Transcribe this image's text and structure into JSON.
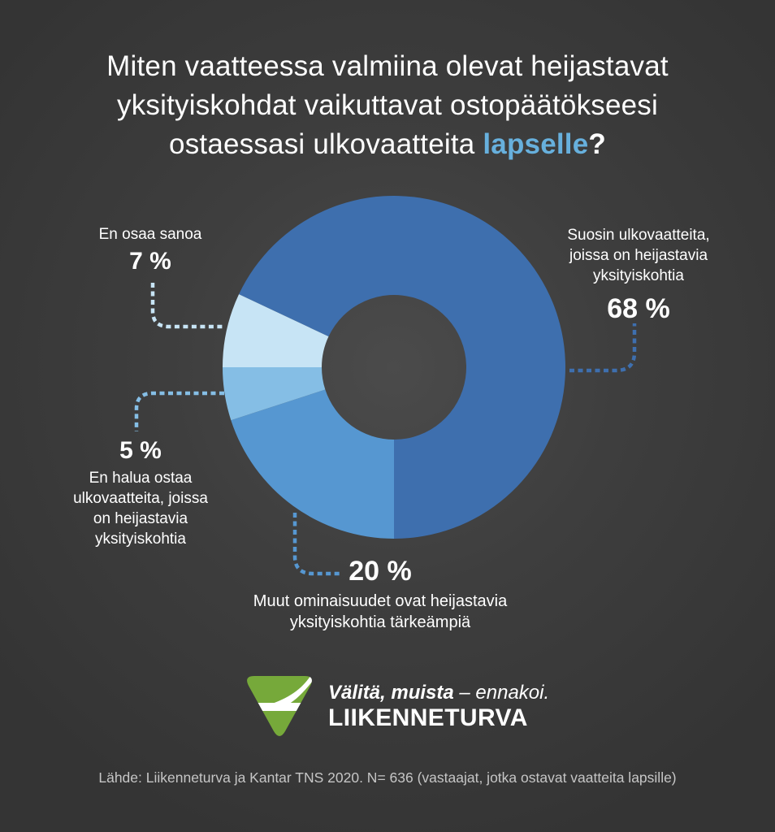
{
  "title": {
    "line1": "Miten vaatteessa valmiina olevat heijastavat",
    "line2": "yksityiskohdat vaikuttavat ostopäätökseesi",
    "line3_prefix": "ostaessasi ulkovaatteita ",
    "line3_highlight": "lapselle",
    "line3_suffix": "?",
    "highlight_color": "#67b0dd"
  },
  "chart_data": {
    "type": "pie",
    "variant": "donut",
    "start_angle_deg": 295.2,
    "clockwise": true,
    "legend_position": "callouts",
    "segments": [
      {
        "label": "Suosin ulkovaatteita, joissa on heijastavia yksityiskohtia",
        "value_pct": 68,
        "value_label": "68 %",
        "color": "#3e6fae"
      },
      {
        "label": "Muut ominaisuudet ovat heijastavia yksityiskohtia tärkeämpiä",
        "value_pct": 20,
        "value_label": "20 %",
        "color": "#5697d1"
      },
      {
        "label": "En halua ostaa ulkovaatteita, joissa on heijastavia yksityiskohtia",
        "value_pct": 5,
        "value_label": "5 %",
        "color": "#85bee5"
      },
      {
        "label": "En osaa sanoa",
        "value_pct": 7,
        "value_label": "7 %",
        "color": "#c7e4f5"
      }
    ]
  },
  "labels": {
    "top_left": {
      "lines": [
        "En osaa sanoa"
      ],
      "pct": "7 %"
    },
    "right": {
      "lines": [
        "Suosin ulkovaatteita,",
        "joissa on heijastavia",
        "yksityiskohtia"
      ],
      "pct": "68 %"
    },
    "mid_left": {
      "pct": "5 %",
      "lines": [
        "En halua ostaa",
        "ulkovaatteita, joissa",
        "on heijastavia",
        "yksityiskohtia"
      ]
    },
    "bottom": {
      "pct": "20 %",
      "lines": [
        "Muut ominaisuudet ovat heijastavia",
        "yksityiskohtia tärkeämpiä"
      ]
    }
  },
  "logo": {
    "tagline_em": "Välitä, muista",
    "tagline_rest": " – ennakoi.",
    "name": "LIIKENNETURVA",
    "green": "#76a93a"
  },
  "footer": {
    "source": "Lähde: Liikenneturva ja Kantar TNS 2020. N= 636 (vastaajat, jotka ostavat vaatteita lapsille)"
  }
}
